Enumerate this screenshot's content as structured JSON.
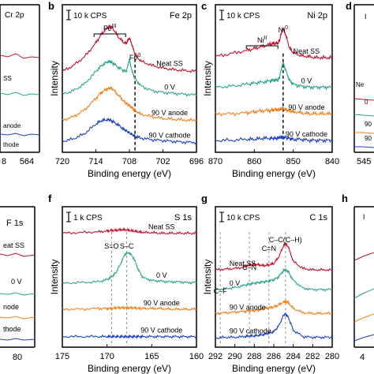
{
  "figure": {
    "row_labels": [
      "b",
      "c",
      "d",
      "f",
      "g",
      "h"
    ],
    "fragment_texts": {
      "top_left_title": "Cr 2p",
      "top_left_trace_1": "SS",
      "top_left_trace_2": "anode",
      "top_left_trace_3": "thode",
      "top_left_ticks": [
        "8",
        "564"
      ],
      "top_right_label_1": "Ne",
      "top_right_label_2": "0",
      "top_right_label_3": "90",
      "top_right_label_4": "90",
      "top_right_tick": "545",
      "bottom_left_title": "F 1s",
      "bottom_left_trace_1": "eat SS",
      "bottom_left_trace_2": "0 V",
      "bottom_left_trace_3": "node",
      "bottom_left_trace_4": "thode",
      "bottom_left_tick": "80",
      "bottom_right_tick": "4"
    },
    "colors": {
      "neat_ss": "#c8102e",
      "zero_v": "#2ca58d",
      "anode": "#f07f1a",
      "cathode": "#1f3fc6",
      "axis": "#000000",
      "refline": "#888888"
    }
  },
  "chart_data": [
    {
      "panel_label": "b",
      "type": "line",
      "title": "Fe 2p",
      "scale_bar": "10 k CPS",
      "xlabel": "Binding energy (eV)",
      "ylabel": "Intensity",
      "xlim": [
        720,
        696
      ],
      "xticks": [
        "720",
        "714",
        "708",
        "702",
        "696"
      ],
      "x": [
        720,
        718,
        716,
        714,
        713,
        712,
        711.5,
        711,
        710,
        709,
        708.5,
        708,
        707.5,
        707,
        706,
        704,
        702,
        700,
        698,
        696
      ],
      "series": [
        {
          "name": "Neat SS",
          "color": "#c8102e",
          "values": [
            0.3,
            1.0,
            2.0,
            3.6,
            4.6,
            5.3,
            5.5,
            5.3,
            4.3,
            3.6,
            3.6,
            4.2,
            3.3,
            2.3,
            1.5,
            1.0,
            0.7,
            0.5,
            0.4,
            0.3
          ]
        },
        {
          "name": "0 V",
          "color": "#2ca58d",
          "values": [
            0.4,
            0.8,
            1.6,
            3.0,
            3.7,
            4.1,
            4.2,
            4.0,
            3.5,
            3.1,
            3.1,
            4.4,
            3.0,
            2.2,
            1.4,
            0.8,
            0.6,
            0.5,
            0.4,
            0.3
          ]
        },
        {
          "name": "90 V anode",
          "color": "#f07f1a",
          "values": [
            0.3,
            0.7,
            1.5,
            2.8,
            3.5,
            3.9,
            4.0,
            3.9,
            3.2,
            2.5,
            2.2,
            2.0,
            1.7,
            1.4,
            1.0,
            0.7,
            0.5,
            0.4,
            0.3,
            0.3
          ]
        },
        {
          "name": "90 V cathode",
          "color": "#1f3fc6",
          "values": [
            0.4,
            0.7,
            1.3,
            2.4,
            2.8,
            2.9,
            2.9,
            2.7,
            2.3,
            1.8,
            1.6,
            1.4,
            1.2,
            1.0,
            0.8,
            0.6,
            0.5,
            0.4,
            0.3,
            0.3
          ]
        }
      ],
      "trace_labels": [
        "Neat SS",
        "0 V",
        "90 V anode",
        "90 V cathode"
      ],
      "annotations": [
        {
          "text": "Fe",
          "sup": "III",
          "x": 711.5
        },
        {
          "text": "Fe",
          "sup": "0",
          "x": 707
        }
      ],
      "reference_lines": [
        707
      ]
    },
    {
      "panel_label": "c",
      "type": "line",
      "title": "Ni 2p",
      "scale_bar": "10 k CPS",
      "xlabel": "Binding energy (eV)",
      "ylabel": "Intensity",
      "xlim": [
        870,
        840
      ],
      "xticks": [
        "870",
        "860",
        "850",
        "840"
      ],
      "x": [
        870,
        866,
        862,
        860,
        858,
        856,
        855,
        854,
        853.5,
        853,
        852.6,
        852,
        851,
        850,
        848,
        846,
        844,
        842,
        840
      ],
      "series": [
        {
          "name": "Neat SS",
          "color": "#c8102e",
          "values": [
            0.4,
            0.7,
            1.0,
            1.2,
            1.4,
            1.6,
            1.7,
            1.7,
            2.0,
            2.8,
            3.2,
            2.6,
            1.3,
            0.8,
            0.5,
            0.4,
            0.3,
            0.3,
            0.3
          ]
        },
        {
          "name": "0 V",
          "color": "#2ca58d",
          "values": [
            0.3,
            0.4,
            0.6,
            0.7,
            0.8,
            0.9,
            1.0,
            1.0,
            1.3,
            2.2,
            2.7,
            2.0,
            1.0,
            0.6,
            0.4,
            0.3,
            0.3,
            0.3,
            0.3
          ]
        },
        {
          "name": "90 V anode",
          "color": "#f07f1a",
          "values": [
            0.3,
            0.3,
            0.4,
            0.5,
            0.6,
            0.6,
            0.7,
            0.7,
            0.7,
            0.8,
            0.8,
            0.7,
            0.6,
            0.5,
            0.4,
            0.3,
            0.3,
            0.3,
            0.3
          ]
        },
        {
          "name": "90 V cathode",
          "color": "#1f3fc6",
          "values": [
            0.3,
            0.3,
            0.4,
            0.4,
            0.5,
            0.5,
            0.5,
            0.5,
            0.6,
            0.6,
            0.6,
            0.6,
            0.5,
            0.4,
            0.4,
            0.3,
            0.3,
            0.3,
            0.3
          ]
        }
      ],
      "trace_labels": [
        "Neat SS",
        "0 V",
        "90 V anode",
        "90 V cathode"
      ],
      "annotations": [
        {
          "text": "Ni",
          "sup": "II",
          "x": 858
        },
        {
          "text": "Ni",
          "sup": "0",
          "x": 852.6
        }
      ],
      "reference_lines": [
        852.6
      ]
    },
    {
      "panel_label": "f",
      "type": "line",
      "title": "S 1s",
      "scale_bar": "1 k CPS",
      "xlabel": "Binding energy (eV)",
      "ylabel": "Intensity",
      "xlim": [
        175,
        160
      ],
      "xticks": [
        "175",
        "170",
        "165",
        "160"
      ],
      "x": [
        175,
        173,
        171,
        170,
        169.5,
        169,
        168.5,
        168,
        167.5,
        167,
        166.5,
        166,
        165,
        164,
        163,
        162,
        161,
        160
      ],
      "series": [
        {
          "name": "Neat SS",
          "color": "#c8102e",
          "values": [
            1.8,
            1.9,
            2.0,
            2.1,
            2.2,
            2.2,
            2.3,
            2.3,
            2.2,
            2.1,
            2.0,
            1.9,
            1.9,
            1.8,
            1.8,
            1.8,
            1.8,
            1.8
          ]
        },
        {
          "name": "0 V",
          "color": "#2ca58d",
          "values": [
            0.3,
            0.4,
            0.5,
            0.8,
            1.2,
            1.8,
            3.0,
            4.4,
            4.6,
            3.8,
            2.2,
            1.1,
            0.7,
            0.6,
            0.5,
            0.5,
            0.4,
            0.4
          ]
        },
        {
          "name": "90 V anode",
          "color": "#f07f1a",
          "values": [
            0.4,
            0.4,
            0.5,
            0.5,
            0.5,
            0.6,
            0.6,
            0.6,
            0.6,
            0.6,
            0.5,
            0.5,
            0.5,
            0.5,
            0.4,
            0.4,
            0.4,
            0.4
          ]
        },
        {
          "name": "90 V cathode",
          "color": "#1f3fc6",
          "values": [
            0.3,
            0.3,
            0.3,
            0.3,
            0.3,
            0.3,
            0.3,
            0.3,
            0.3,
            0.3,
            0.3,
            0.3,
            0.3,
            0.3,
            0.3,
            0.3,
            0.3,
            0.3
          ]
        }
      ],
      "trace_labels": [
        "Neat SS",
        "0 V",
        "90 V anode",
        "90 V cathode"
      ],
      "annotations": [
        {
          "text": "S=O",
          "x": 169.5
        },
        {
          "text": "S–C",
          "x": 167.8
        }
      ],
      "reference_lines": [
        169.5,
        167.8
      ]
    },
    {
      "panel_label": "g",
      "type": "line",
      "title": "C 1s",
      "scale_bar": "10 k CPS",
      "xlabel": "Binding energy (eV)",
      "ylabel": "Intensity",
      "xlim": [
        292,
        280
      ],
      "xticks": [
        "292",
        "290",
        "288",
        "286",
        "284",
        "282",
        "280"
      ],
      "x": [
        292,
        291,
        290,
        289,
        288.5,
        288,
        287.5,
        287,
        286.5,
        286,
        285.5,
        285,
        284.8,
        284.5,
        284,
        283,
        282,
        281,
        280
      ],
      "series": [
        {
          "name": "Neat SS",
          "color": "#c8102e",
          "values": [
            0.2,
            0.3,
            0.4,
            0.6,
            0.9,
            1.0,
            0.9,
            0.8,
            0.9,
            1.1,
            2.0,
            3.6,
            3.9,
            3.4,
            1.4,
            0.4,
            0.2,
            0.2,
            0.2
          ]
        },
        {
          "name": "0 V",
          "color": "#2ca58d",
          "values": [
            0.2,
            0.3,
            0.5,
            0.8,
            1.0,
            1.1,
            1.2,
            1.3,
            1.4,
            1.6,
            2.0,
            2.9,
            3.0,
            2.7,
            1.5,
            0.4,
            0.2,
            0.2,
            0.2
          ]
        },
        {
          "name": "90 V anode",
          "color": "#f07f1a",
          "values": [
            0.2,
            0.3,
            0.4,
            0.5,
            0.6,
            0.6,
            0.7,
            0.9,
            1.0,
            1.1,
            1.4,
            1.8,
            1.9,
            1.7,
            0.9,
            0.3,
            0.2,
            0.2,
            0.2
          ]
        },
        {
          "name": "90 V cathode",
          "color": "#1f3fc6",
          "values": [
            0.1,
            0.2,
            0.2,
            0.3,
            0.4,
            0.4,
            0.5,
            0.6,
            0.8,
            1.0,
            1.8,
            3.3,
            3.5,
            3.0,
            1.2,
            0.3,
            0.2,
            0.2,
            0.2
          ]
        }
      ],
      "trace_labels": [
        "Neat SS",
        "0 V",
        "90 V anode",
        "90 V cathode"
      ],
      "annotations": [
        {
          "text": "C–F",
          "x": 291.5
        },
        {
          "text": "C–N",
          "x": 288.5
        },
        {
          "text": "C=N",
          "x": 286.5
        },
        {
          "text": "C–C(C–H)",
          "x": 284.8
        }
      ],
      "reference_lines": [
        291.5,
        288.5,
        286.5,
        284.8
      ]
    }
  ]
}
